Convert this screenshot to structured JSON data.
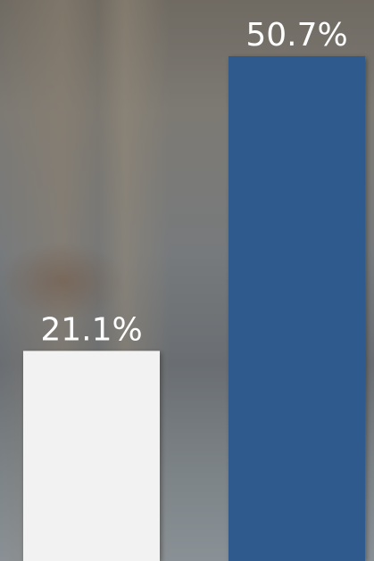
{
  "chart_data": {
    "type": "bar",
    "categories": [
      null,
      null
    ],
    "values": [
      21.1,
      50.7
    ],
    "value_labels": [
      "21.1%",
      "50.7%"
    ],
    "colors": [
      "#f2f2f2",
      "#2e5a8e"
    ]
  }
}
